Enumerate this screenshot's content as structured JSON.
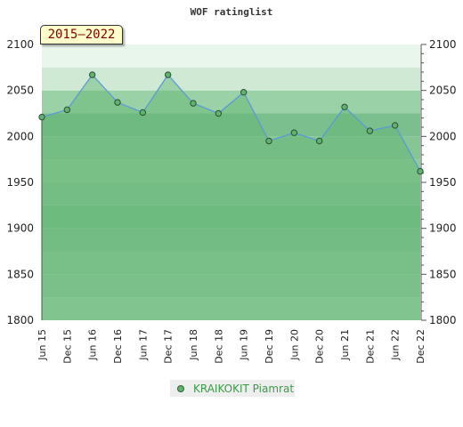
{
  "chart_data": {
    "type": "area",
    "title": "WOF ratinglist",
    "period": "2015–2022",
    "categories": [
      "Jun 15",
      "Dec 15",
      "Jun 16",
      "Dec 16",
      "Jun 17",
      "Dec 17",
      "Jun 18",
      "Dec 18",
      "Jun 19",
      "Dec 19",
      "Jun 20",
      "Dec 20",
      "Jun 21",
      "Dec 21",
      "Jun 22",
      "Dec 22"
    ],
    "series": [
      {
        "name": "KRAIKOKIT Piamrat",
        "values": [
          2021,
          2029,
          2067,
          2037,
          2026,
          2067,
          2036,
          2025,
          2048,
          1995,
          2004,
          1995,
          2032,
          2006,
          2012,
          1962
        ]
      }
    ],
    "ylim": [
      1800,
      2100
    ],
    "yticks": [
      1800,
      1850,
      1900,
      1950,
      2000,
      2050,
      2100
    ],
    "xlabel": "",
    "ylabel": "",
    "grid": true,
    "legend": "bottom-center",
    "colors": {
      "line": "#5b9bd5",
      "fill": "#5fb36f",
      "marker": "#5fb36f",
      "marker_edge": "#2d4f33"
    }
  }
}
